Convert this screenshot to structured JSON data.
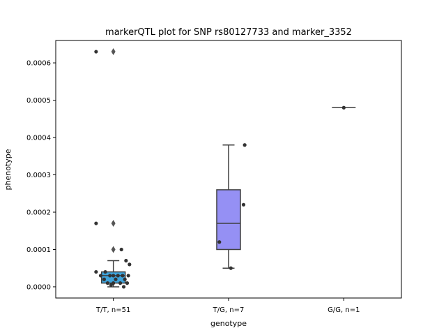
{
  "chart_data": {
    "type": "box",
    "title": "markerQTL plot for SNP rs80127733 and marker_3352",
    "xlabel": "genotype",
    "ylabel": "phenotype",
    "ylim": [
      -3e-05,
      0.00066
    ],
    "yticks": [
      "0.0000",
      "0.0001",
      "0.0002",
      "0.0003",
      "0.0004",
      "0.0005",
      "0.0006"
    ],
    "ytick_values": [
      0,
      0.0001,
      0.0002,
      0.0003,
      0.0004,
      0.0005,
      0.0006
    ],
    "categories": [
      "T/T, n=51",
      "T/G, n=7",
      "G/G, n=1"
    ],
    "boxes": [
      {
        "category": "T/T, n=51",
        "color": "#3ea4dc",
        "q1": 1e-05,
        "median": 3e-05,
        "q3": 4e-05,
        "whisker_low": 0.0,
        "whisker_high": 7e-05,
        "outliers": [
          0.0001,
          0.00017,
          0.00063
        ]
      },
      {
        "category": "T/G, n=7",
        "color": "#9590f4",
        "q1": 0.0001,
        "median": 0.00017,
        "q3": 0.00026,
        "whisker_low": 5e-05,
        "whisker_high": 0.00038,
        "outliers": []
      },
      {
        "category": "G/G, n=1",
        "color": "#888888",
        "q1": 0.00048,
        "median": 0.00048,
        "q3": 0.00048,
        "whisker_low": 0.00048,
        "whisker_high": 0.00048,
        "outliers": []
      }
    ],
    "points": [
      {
        "category": 0,
        "offset": -0.15,
        "y": 0.00063
      },
      {
        "category": 0,
        "offset": -0.15,
        "y": 0.00017
      },
      {
        "category": 0,
        "offset": 0.07,
        "y": 0.0001
      },
      {
        "category": 0,
        "offset": 0.11,
        "y": 7e-05
      },
      {
        "category": 0,
        "offset": 0.14,
        "y": 6e-05
      },
      {
        "category": 0,
        "offset": -0.15,
        "y": 4e-05
      },
      {
        "category": 0,
        "offset": -0.07,
        "y": 4e-05
      },
      {
        "category": 0,
        "offset": -0.11,
        "y": 3e-05
      },
      {
        "category": 0,
        "offset": -0.03,
        "y": 3e-05
      },
      {
        "category": 0,
        "offset": 0.0,
        "y": 3e-05
      },
      {
        "category": 0,
        "offset": 0.04,
        "y": 3e-05
      },
      {
        "category": 0,
        "offset": 0.08,
        "y": 3e-05
      },
      {
        "category": 0,
        "offset": 0.13,
        "y": 3e-05
      },
      {
        "category": 0,
        "offset": -0.08,
        "y": 2e-05
      },
      {
        "category": 0,
        "offset": 0.02,
        "y": 2e-05
      },
      {
        "category": 0,
        "offset": 0.1,
        "y": 2e-05
      },
      {
        "category": 0,
        "offset": -0.05,
        "y": 1e-05
      },
      {
        "category": 0,
        "offset": 0.0,
        "y": 1e-05
      },
      {
        "category": 0,
        "offset": 0.06,
        "y": 1e-05
      },
      {
        "category": 0,
        "offset": 0.12,
        "y": 1e-05
      },
      {
        "category": 0,
        "offset": -0.02,
        "y": 5e-06
      },
      {
        "category": 0,
        "offset": 0.09,
        "y": 0.0
      },
      {
        "category": 1,
        "offset": 0.14,
        "y": 0.00038
      },
      {
        "category": 1,
        "offset": 0.13,
        "y": 0.00022
      },
      {
        "category": 1,
        "offset": -0.08,
        "y": 0.00012
      },
      {
        "category": 1,
        "offset": 0.02,
        "y": 5e-05
      },
      {
        "category": 2,
        "offset": 0.0,
        "y": 0.00048
      }
    ],
    "grid": false,
    "colors": {
      "box_edge": "#3f3f3f",
      "point": "#333333",
      "outlier_marker": "#555555"
    }
  }
}
